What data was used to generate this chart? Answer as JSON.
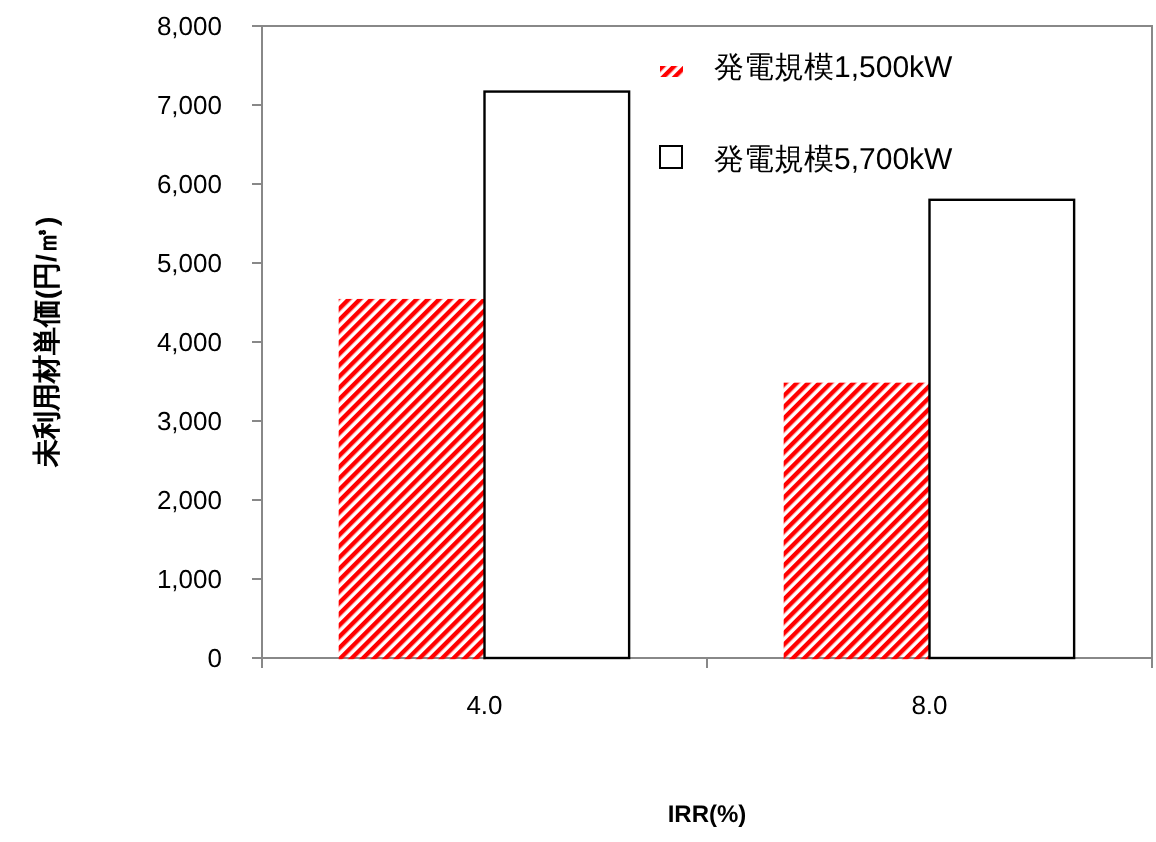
{
  "chart_data": {
    "type": "bar",
    "xlabel": "IRR(%)",
    "ylabel": "未利用材単価(円/㎥)",
    "categories": [
      "4.0",
      "8.0"
    ],
    "series": [
      {
        "name": "発電規模1,500kW",
        "color": "#ff0000",
        "values": [
          4530,
          3470
        ]
      },
      {
        "name": "発電規模5,700kW",
        "color": "#ffffff",
        "values": [
          7170,
          5800
        ]
      }
    ],
    "ylim": [
      0,
      8000
    ],
    "yticks": [
      {
        "value": 0,
        "label": "0"
      },
      {
        "value": 1000,
        "label": "1,000"
      },
      {
        "value": 2000,
        "label": "2,000"
      },
      {
        "value": 3000,
        "label": "3,000"
      },
      {
        "value": 4000,
        "label": "4,000"
      },
      {
        "value": 5000,
        "label": "5,000"
      },
      {
        "value": 6000,
        "label": "6,000"
      },
      {
        "value": 7000,
        "label": "7,000"
      },
      {
        "value": 8000,
        "label": "8,000"
      }
    ],
    "legend": "top right",
    "grid": false
  }
}
